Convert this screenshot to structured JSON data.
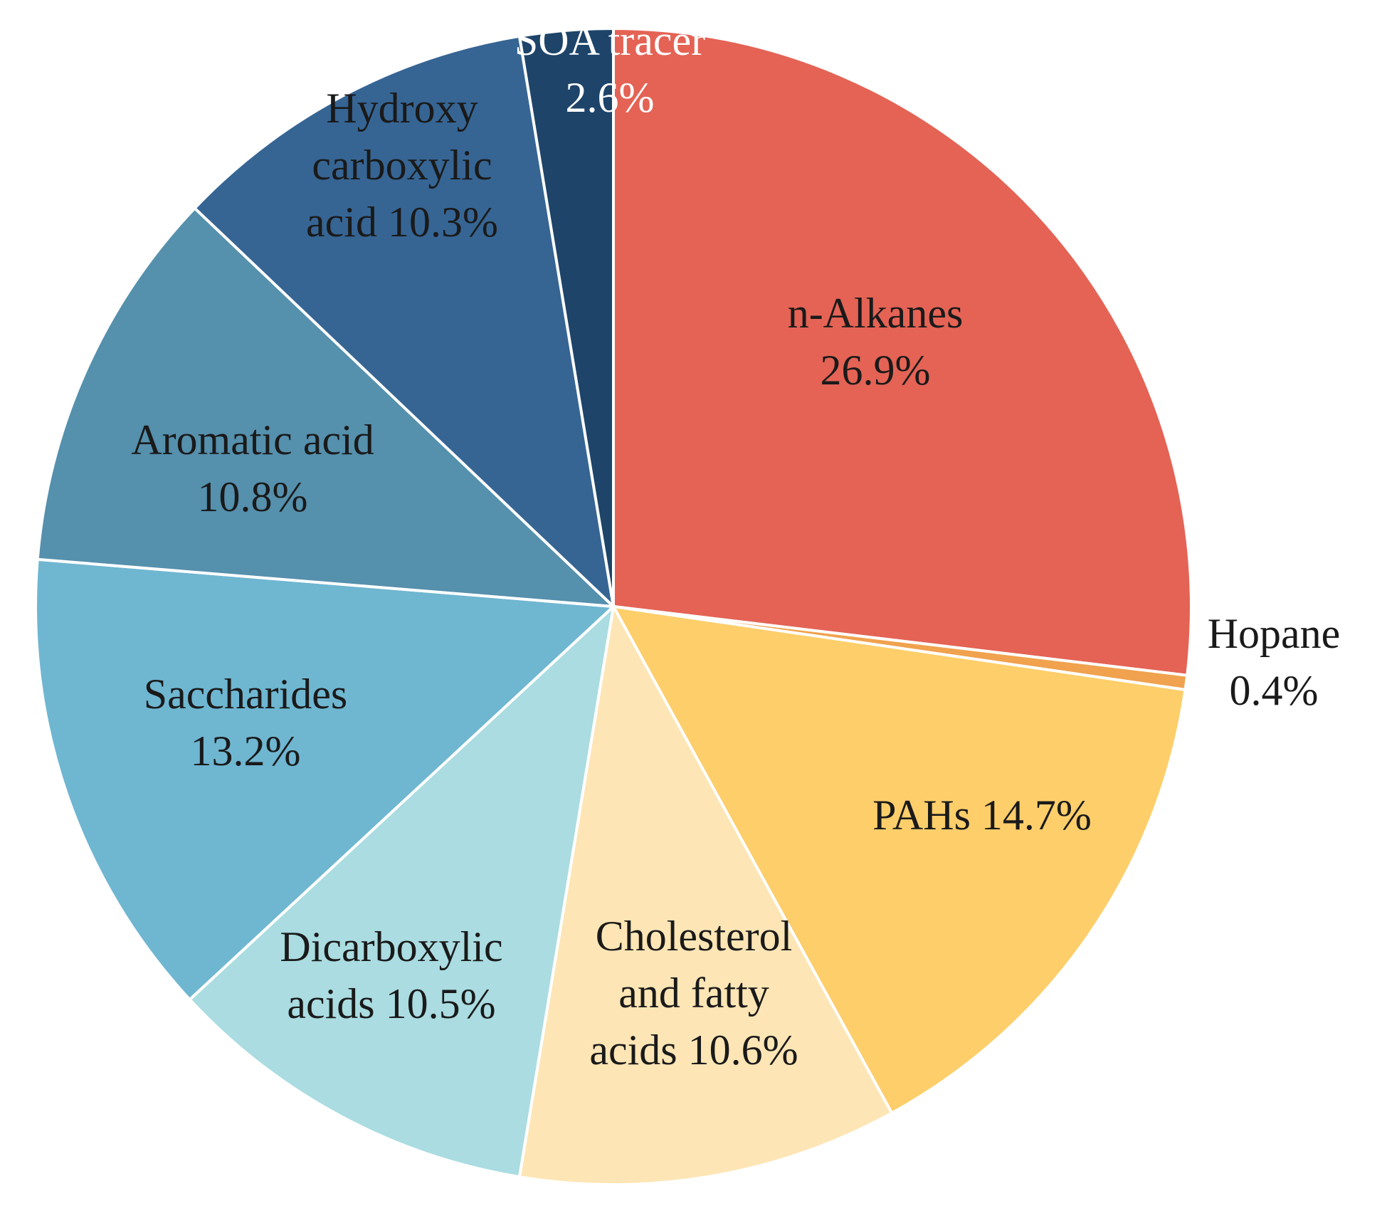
{
  "chart_data": {
    "type": "pie",
    "title": "",
    "slices": [
      {
        "name": "n-Alkanes",
        "value": 26.9,
        "lines": [
          "n-Alkanes",
          "26.9%"
        ],
        "color": "#E46355",
        "text_color": "#1a1a1a"
      },
      {
        "name": "Hopane",
        "value": 0.4,
        "lines": [
          "Hopane",
          "0.4%"
        ],
        "color": "#F0A24E",
        "text_color": "#1a1a1a"
      },
      {
        "name": "PAHs",
        "value": 14.7,
        "lines": [
          "PAHs 14.7%"
        ],
        "color": "#FDCE6A",
        "text_color": "#1a1a1a"
      },
      {
        "name": "Cholesterol and fatty acids",
        "value": 10.6,
        "lines": [
          "Cholesterol",
          "and fatty",
          "acids 10.6%"
        ],
        "color": "#FDE5B5",
        "text_color": "#1a1a1a"
      },
      {
        "name": "Dicarboxylic acids",
        "value": 10.5,
        "lines": [
          "Dicarboxylic",
          "acids 10.5%"
        ],
        "color": "#AADCE1",
        "text_color": "#1a1a1a"
      },
      {
        "name": "Saccharides",
        "value": 13.2,
        "lines": [
          "Saccharides",
          "13.2%"
        ],
        "color": "#6FB6D1",
        "text_color": "#1a1a1a"
      },
      {
        "name": "Aromatic acid",
        "value": 10.8,
        "lines": [
          "Aromatic acid",
          "10.8%"
        ],
        "color": "#5590AD",
        "text_color": "#1a1a1a"
      },
      {
        "name": "Hydroxy carboxylic acid",
        "value": 10.3,
        "lines": [
          "Hydroxy",
          "carboxylic",
          "acid 10.3%"
        ],
        "color": "#366594",
        "text_color": "#1a1a1a"
      },
      {
        "name": "SOA tracer",
        "value": 2.6,
        "lines": [
          "SOA tracer",
          "2.6%"
        ],
        "color": "#1E4469",
        "text_color": "#ffffff"
      }
    ],
    "start_angle": "12 o'clock",
    "direction": "clockwise",
    "slice_border_color": "#ffffff",
    "legend": "none"
  }
}
